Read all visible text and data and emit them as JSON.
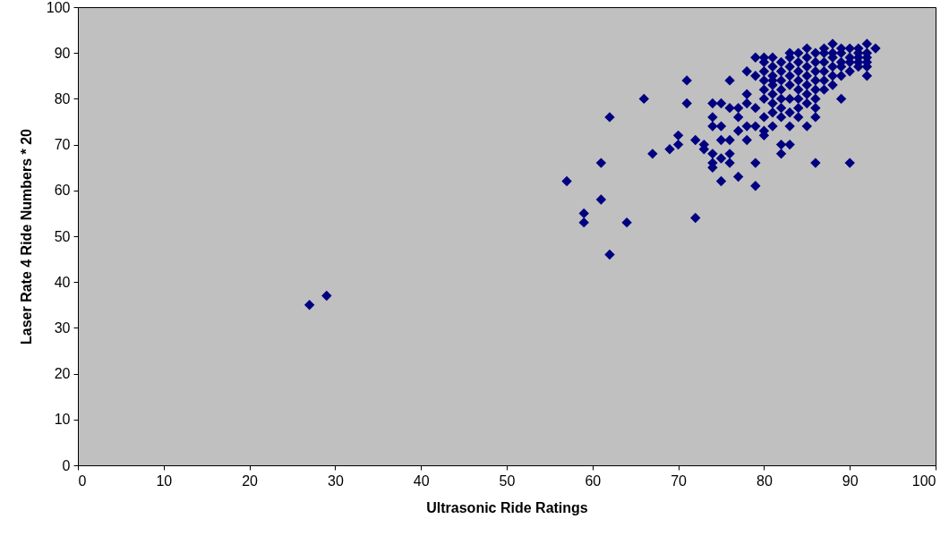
{
  "chart_data": {
    "type": "scatter",
    "xlabel": "Ultrasonic Ride Ratings",
    "ylabel": "Laser Rate 4 Ride Numbers * 20",
    "color": "#000080",
    "marker": "diamond",
    "xlim": [
      0,
      100
    ],
    "ylim": [
      0,
      100
    ],
    "xticks": [
      0,
      10,
      20,
      30,
      40,
      50,
      60,
      70,
      80,
      90,
      100
    ],
    "yticks": [
      0,
      10,
      20,
      30,
      40,
      50,
      60,
      70,
      80,
      90,
      100
    ],
    "x": [
      27,
      29,
      57,
      59,
      59,
      61,
      61,
      62,
      62,
      64,
      66,
      67,
      69,
      70,
      70,
      71,
      71,
      72,
      72,
      73,
      73,
      74,
      74,
      74,
      74,
      74,
      74,
      75,
      75,
      75,
      75,
      75,
      76,
      76,
      76,
      76,
      76,
      77,
      77,
      77,
      77,
      78,
      78,
      78,
      78,
      78,
      79,
      79,
      79,
      79,
      79,
      79,
      80,
      80,
      80,
      80,
      81,
      81,
      81,
      81,
      82,
      82,
      82,
      82,
      83,
      83,
      83,
      84,
      84,
      85,
      85,
      86,
      86,
      86,
      88,
      89,
      90,
      91,
      92,
      92,
      93,
      92,
      80,
      80,
      80,
      80,
      80,
      81,
      81,
      81,
      81,
      81,
      82,
      82,
      82,
      82,
      82,
      83,
      83,
      83,
      83,
      83,
      83,
      84,
      84,
      84,
      84,
      84,
      84,
      85,
      85,
      85,
      85,
      85,
      85,
      86,
      86,
      86,
      86,
      86,
      86,
      87,
      87,
      87,
      87,
      87,
      87,
      88,
      88,
      88,
      88,
      88,
      89,
      89,
      89,
      89,
      89,
      90,
      90,
      90,
      90,
      91,
      91,
      91,
      91,
      92,
      92,
      92
    ],
    "values": [
      35,
      37,
      62,
      55,
      53,
      58,
      66,
      76,
      46,
      53,
      80,
      68,
      69,
      70,
      72,
      84,
      79,
      71,
      54,
      70,
      69,
      68,
      65,
      66,
      76,
      79,
      74,
      67,
      62,
      71,
      74,
      79,
      78,
      84,
      66,
      68,
      71,
      63,
      76,
      73,
      78,
      71,
      74,
      79,
      81,
      86,
      61,
      66,
      74,
      78,
      85,
      89,
      73,
      76,
      72,
      89,
      77,
      74,
      84,
      89,
      68,
      70,
      76,
      80,
      70,
      74,
      90,
      76,
      78,
      74,
      91,
      66,
      76,
      78,
      92,
      80,
      66,
      87,
      85,
      92,
      91,
      88,
      80,
      82,
      84,
      86,
      88,
      79,
      81,
      83,
      85,
      87,
      78,
      82,
      84,
      86,
      88,
      77,
      80,
      83,
      85,
      87,
      89,
      80,
      82,
      84,
      86,
      88,
      90,
      79,
      81,
      83,
      85,
      87,
      89,
      80,
      82,
      84,
      86,
      88,
      90,
      82,
      84,
      86,
      88,
      90,
      91,
      83,
      85,
      87,
      89,
      90,
      85,
      87,
      88,
      90,
      91,
      86,
      88,
      89,
      91,
      88,
      89,
      90,
      91,
      87,
      89,
      90
    ]
  }
}
